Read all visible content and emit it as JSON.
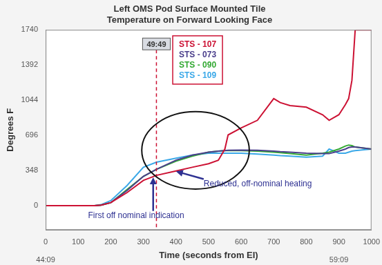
{
  "chart_data": {
    "type": "line",
    "title": [
      "Left OMS Pod Surface Mounted Tile",
      "Temperature on Forward Looking Face"
    ],
    "x_label": "Time (seconds from EI)",
    "y_label": "Degrees F",
    "x": [
      0,
      100,
      150,
      170,
      200,
      250,
      300,
      340,
      400,
      450,
      500,
      530,
      550,
      560,
      600,
      650,
      700,
      720,
      750,
      800,
      850,
      870,
      900,
      920,
      930,
      940,
      950,
      1000
    ],
    "series": [
      {
        "name": "STS - 107",
        "color": "#cc1133",
        "values": [
          0,
          0,
          0,
          5,
          30,
          130,
          250,
          300,
          344,
          380,
          415,
          450,
          560,
          700,
          770,
          845,
          1060,
          1020,
          990,
          975,
          900,
          845,
          900,
          1000,
          1060,
          1240,
          1740,
          1740
        ]
      },
      {
        "name": "STS - 073",
        "color": "#4b3f8c",
        "values": [
          0,
          0,
          0,
          5,
          30,
          150,
          290,
          360,
          450,
          500,
          530,
          540,
          545,
          548,
          550,
          548,
          540,
          535,
          530,
          520,
          515,
          515,
          540,
          560,
          575,
          580,
          580,
          560
        ]
      },
      {
        "name": "STS - 090",
        "color": "#33a933",
        "values": [
          0,
          0,
          0,
          5,
          30,
          160,
          290,
          360,
          440,
          490,
          530,
          540,
          545,
          545,
          545,
          540,
          530,
          525,
          515,
          500,
          520,
          530,
          560,
          590,
          600,
          595,
          580,
          560
        ]
      },
      {
        "name": "STS - 109",
        "color": "#3aa8e8",
        "values": [
          0,
          0,
          0,
          10,
          50,
          200,
          380,
          430,
          470,
          500,
          520,
          520,
          520,
          520,
          520,
          510,
          500,
          495,
          490,
          480,
          490,
          560,
          520,
          520,
          530,
          540,
          545,
          560
        ]
      }
    ],
    "xlim": [
      0,
      1000
    ],
    "xticks": [
      0,
      100,
      200,
      300,
      400,
      500,
      600,
      700,
      800,
      900,
      1000
    ],
    "ylim": [
      -240,
      1740
    ],
    "yticks": [
      0,
      348,
      696,
      1044,
      1392,
      1740
    ],
    "grid": false,
    "legend": "upper center",
    "x_clock_labels": [
      {
        "value": 0,
        "label": "44:09"
      },
      {
        "value": 900,
        "label": "59:09"
      }
    ],
    "event_line": {
      "x": 340,
      "label": "49:49",
      "color": "#cc1133",
      "line_style": "dashed"
    },
    "highlight_ellipse": {
      "x": [
        295,
        625
      ],
      "y": [
        165,
        930
      ]
    },
    "annotations": [
      {
        "text": "First off nominal indication",
        "x": 130,
        "y": -100,
        "arrow_to": [
          330,
          280
        ]
      },
      {
        "text": "Reduced, off-nominal heating",
        "x": 485,
        "y": 215,
        "arrow_to": [
          400,
          340
        ]
      }
    ]
  }
}
